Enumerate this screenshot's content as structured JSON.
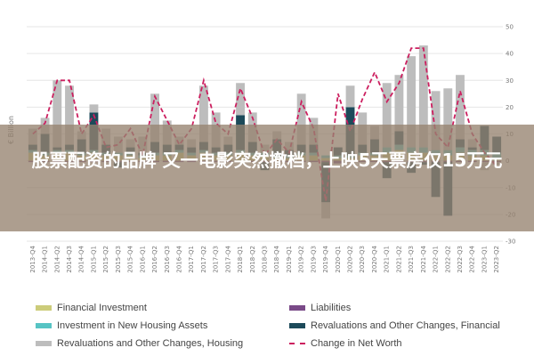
{
  "headline": "股票配资的品牌 又一电影突然撤档，上映5天票房仅15万元",
  "chart_data": {
    "type": "bar",
    "stacked": true,
    "ylabel": "€ Billion",
    "ylim": [
      -30,
      50
    ],
    "yticks": [
      50,
      40,
      30,
      20,
      10,
      0,
      -10,
      -20,
      -30
    ],
    "grid": true,
    "legend_position": "bottom",
    "categories": [
      "2013-Q4",
      "2014-Q1",
      "2014-Q2",
      "2014-Q3",
      "2014-Q4",
      "2015-Q1",
      "2015-Q2",
      "2015-Q3",
      "2015-Q4",
      "2016-Q1",
      "2016-Q2",
      "2016-Q3",
      "2016-Q4",
      "2017-Q1",
      "2017-Q2",
      "2017-Q3",
      "2017-Q4",
      "2018-Q1",
      "2018-Q2",
      "2018-Q3",
      "2018-Q4",
      "2019-Q1",
      "2019-Q2",
      "2019-Q3",
      "2019-Q4",
      "2020-Q1",
      "2020-Q2",
      "2020-Q3",
      "2020-Q4",
      "2021-Q1",
      "2021-Q2",
      "2021-Q3",
      "2021-Q4",
      "2022-Q1",
      "2022-Q2",
      "2022-Q3",
      "2022-Q4",
      "2023-Q1",
      "2023-Q2"
    ],
    "series": [
      {
        "name": "Financial Investment",
        "kind": "bar",
        "color": "#cccc7a",
        "values": [
          3,
          2,
          3,
          3,
          2,
          3,
          2,
          2,
          2,
          1,
          2,
          2,
          3,
          2,
          3,
          2,
          2,
          3,
          2,
          2,
          1,
          1,
          2,
          2,
          1,
          1,
          1,
          2,
          2,
          3,
          4,
          3,
          3,
          2,
          2,
          3,
          2,
          2,
          1
        ]
      },
      {
        "name": "Liabilities",
        "kind": "bar",
        "color": "#7a4a88",
        "values": [
          -0.5,
          -0.5,
          -0.5,
          -0.5,
          -0.5,
          -0.5,
          -0.5,
          -0.5,
          -0.5,
          -0.5,
          -0.5,
          -0.5,
          -0.5,
          -0.5,
          -0.5,
          -0.5,
          -0.5,
          -0.5,
          -0.5,
          -0.5,
          -0.5,
          -0.5,
          -0.5,
          -0.5,
          -0.5,
          -1,
          -0.5,
          -0.5,
          -0.5,
          -0.5,
          -0.5,
          -0.5,
          -0.5,
          -0.5,
          -0.5,
          -0.5,
          -0.5,
          -0.5,
          -0.5
        ]
      },
      {
        "name": "Investment in New Housing Assets",
        "kind": "bar",
        "color": "#57c4c4",
        "values": [
          1,
          1,
          1,
          1,
          1,
          1,
          1,
          1,
          1,
          1,
          1,
          1,
          1,
          1,
          1,
          1,
          1,
          1,
          1,
          1,
          1,
          1,
          1,
          1,
          1,
          1,
          1,
          1,
          1,
          2,
          2,
          2,
          2,
          2,
          2,
          2,
          2,
          2,
          2
        ]
      },
      {
        "name": "Revaluations and Other Changes, Financial",
        "kind": "bar",
        "color": "#1c4a5a",
        "values": [
          2,
          7,
          1,
          2,
          5,
          14,
          3,
          -2,
          2,
          1,
          4,
          3,
          2,
          2,
          3,
          2,
          3,
          13,
          4,
          -3,
          6,
          2,
          3,
          3,
          -15,
          3,
          18,
          3,
          5,
          -6,
          5,
          -4,
          -1,
          -13,
          -20,
          3,
          1,
          9,
          6
        ]
      },
      {
        "name": "Revaluations and Other Changes, Housing",
        "kind": "bar",
        "color": "#bdbdbd",
        "values": [
          6,
          6,
          25,
          22,
          3,
          3,
          6,
          6,
          3,
          6,
          18,
          9,
          3,
          3,
          21,
          13,
          3,
          12,
          11,
          3,
          3,
          3,
          19,
          10,
          -6,
          0,
          8,
          12,
          5,
          24,
          21,
          34,
          38,
          22,
          23,
          24,
          3,
          -3,
          -1
        ]
      },
      {
        "name": "Change in Net Worth",
        "kind": "line",
        "color": "#cc1f5f",
        "values": [
          10,
          14,
          30,
          30,
          10,
          17,
          5,
          6,
          12,
          2,
          24,
          15,
          6,
          12,
          30,
          14,
          10,
          27,
          16,
          2,
          8,
          3,
          22,
          12,
          -15,
          25,
          11,
          23,
          33,
          22,
          29,
          42,
          42,
          10,
          5,
          26,
          10,
          3,
          -2
        ]
      }
    ]
  }
}
